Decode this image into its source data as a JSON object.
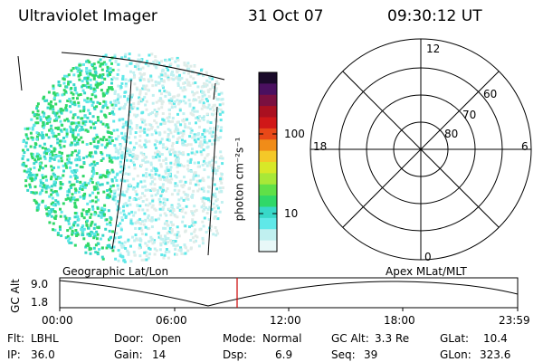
{
  "header": {
    "title": "Ultraviolet Imager",
    "date": "31 Oct 07",
    "time": "09:30:12 UT"
  },
  "colorbar": {
    "label": "photon cm⁻²s⁻¹",
    "ticks": [
      "100",
      "10"
    ],
    "colors": [
      "#1a0a2a",
      "#4a1060",
      "#7a1040",
      "#aa1020",
      "#d01818",
      "#e84818",
      "#f08c18",
      "#f4c828",
      "#d8e828",
      "#a8e838",
      "#60e048",
      "#30d868",
      "#38d8c8",
      "#60e8e8",
      "#c0f0f0",
      "#e8f8f8"
    ]
  },
  "polar": {
    "labels": {
      "top": "12",
      "bottom": "0",
      "left": "18",
      "right": "6"
    },
    "lat_labels": [
      "60",
      "70",
      "80"
    ]
  },
  "timeline": {
    "left_label": "Geographic Lat/Lon",
    "right_label": "Apex MLat/MLT",
    "axis_label": "GC Alt",
    "y_ticks": [
      "9.0",
      "1.8"
    ],
    "x_ticks": [
      "00:00",
      "06:00",
      "12:00",
      "18:00",
      "23:59"
    ],
    "marker_color": "#cc0000"
  },
  "footer": {
    "row1": [
      {
        "k": "Flt:",
        "v": "LBHL"
      },
      {
        "k": "Door:",
        "v": "Open"
      },
      {
        "k": "Mode:",
        "v": "Normal"
      },
      {
        "k": "GC Alt:",
        "v": "3.3 Re"
      },
      {
        "k": "GLat:",
        "v": "10.4"
      }
    ],
    "row2": [
      {
        "k": "IP:",
        "v": "36.0"
      },
      {
        "k": "Gain:",
        "v": "14"
      },
      {
        "k": "Dsp:",
        "v": "6.9"
      },
      {
        "k": "Seq:",
        "v": "39"
      },
      {
        "k": "GLon:",
        "v": "323.6"
      }
    ]
  }
}
